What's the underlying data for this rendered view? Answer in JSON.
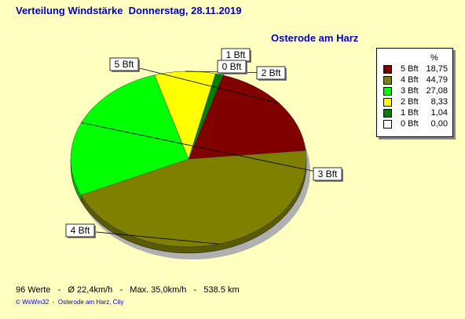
{
  "title": "Verteilung Windstärke  Donnerstag, 28.11.2019",
  "subtitle": "Osterode am Harz",
  "stats": "96 Werte   -   Ø 22,4km/h   -   Max. 35,0km/h   -   538.5 km",
  "footer": "© WsWin32  -  Osterode am Harz, City",
  "legend_header": "%",
  "chart_data": {
    "type": "pie",
    "slices": [
      {
        "label": "5 Bft",
        "value": 18.75,
        "value_text": "18,75",
        "color": "#800000"
      },
      {
        "label": "4 Bft",
        "value": 44.79,
        "value_text": "44,79",
        "color": "#808000"
      },
      {
        "label": "3 Bft",
        "value": 27.08,
        "value_text": "27,08",
        "color": "#00ff00"
      },
      {
        "label": "2 Bft",
        "value": 8.33,
        "value_text": "8,33",
        "color": "#ffff00"
      },
      {
        "label": "1 Bft",
        "value": 1.04,
        "value_text": "1,04",
        "color": "#008000"
      },
      {
        "label": "0 Bft",
        "value": 0.0,
        "value_text": "0,00",
        "color": "#ffffff"
      }
    ],
    "legend_position": "top-right",
    "style": "3d"
  }
}
